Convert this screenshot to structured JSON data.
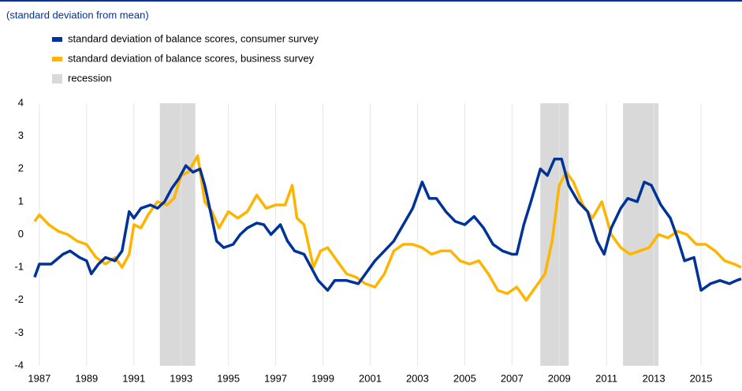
{
  "chart_data": {
    "type": "line",
    "subtitle": "(standard deviation from mean)",
    "xlim": [
      1986.77,
      2016.7
    ],
    "xticks": [
      1987,
      1989,
      1991,
      1993,
      1995,
      1997,
      1999,
      2001,
      2003,
      2005,
      2007,
      2009,
      2011,
      2013,
      2015
    ],
    "ylim": [
      -4,
      4
    ],
    "yticks": [
      -4,
      -3,
      -2,
      -1,
      0,
      1,
      2,
      3,
      4
    ],
    "grid": true,
    "recessions": {
      "name": "recession",
      "color": "#d9d9d9",
      "spans": [
        [
          1992.1,
          1993.6
        ],
        [
          2008.2,
          2009.4
        ],
        [
          2011.7,
          2013.2
        ]
      ]
    },
    "series": [
      {
        "name": "standard deviation of balance scores, consumer survey",
        "color": "#003399",
        "x": [
          1986.8,
          1987,
          1987.5,
          1988,
          1988.3,
          1988.7,
          1989,
          1989.2,
          1989.5,
          1989.8,
          1990.2,
          1990.5,
          1990.8,
          1991,
          1991.3,
          1991.7,
          1992,
          1992.3,
          1992.6,
          1992.9,
          1993.2,
          1993.5,
          1993.8,
          1994,
          1994.3,
          1994.5,
          1994.8,
          1995.2,
          1995.5,
          1995.8,
          1996.2,
          1996.5,
          1996.8,
          1997.2,
          1997.5,
          1997.8,
          1998.2,
          1998.5,
          1998.8,
          1999.2,
          1999.5,
          2000,
          2000.5,
          2000.8,
          2001.2,
          2001.6,
          2002,
          2002.4,
          2002.8,
          2003.2,
          2003.5,
          2003.8,
          2004.2,
          2004.6,
          2005,
          2005.4,
          2005.8,
          2006.2,
          2006.6,
          2007,
          2007.2,
          2007.5,
          2007.8,
          2008.2,
          2008.5,
          2008.8,
          2009.1,
          2009.4,
          2009.8,
          2010.2,
          2010.6,
          2010.9,
          2011.2,
          2011.6,
          2011.9,
          2012.3,
          2012.6,
          2012.9,
          2013.3,
          2013.7,
          2014,
          2014.3,
          2014.7,
          2015,
          2015.4,
          2015.8,
          2016.2,
          2016.5,
          2016.7
        ],
        "values": [
          -1.3,
          -0.9,
          -0.9,
          -0.6,
          -0.5,
          -0.7,
          -0.8,
          -1.2,
          -0.9,
          -0.7,
          -0.8,
          -0.5,
          0.7,
          0.5,
          0.8,
          0.9,
          0.8,
          1.0,
          1.4,
          1.7,
          2.1,
          1.9,
          2.0,
          1.5,
          0.5,
          -0.2,
          -0.4,
          -0.3,
          0.0,
          0.2,
          0.35,
          0.3,
          0.0,
          0.3,
          -0.2,
          -0.5,
          -0.6,
          -1.0,
          -1.4,
          -1.7,
          -1.4,
          -1.4,
          -1.5,
          -1.2,
          -0.8,
          -0.5,
          -0.2,
          0.3,
          0.8,
          1.6,
          1.1,
          1.1,
          0.7,
          0.4,
          0.3,
          0.55,
          0.2,
          -0.3,
          -0.5,
          -0.6,
          -0.6,
          0.3,
          1.0,
          2.0,
          1.8,
          2.3,
          2.3,
          1.5,
          1.0,
          0.7,
          -0.2,
          -0.6,
          0.2,
          0.8,
          1.1,
          1.0,
          1.6,
          1.5,
          0.9,
          0.5,
          -0.1,
          -0.8,
          -0.7,
          -1.7,
          -1.5,
          -1.4,
          -1.5,
          -1.4,
          -1.35
        ]
      },
      {
        "name": "standard deviation of balance scores, business survey",
        "color": "#ffb400",
        "x": [
          1986.8,
          1987,
          1987.4,
          1987.8,
          1988.2,
          1988.6,
          1989,
          1989.4,
          1989.8,
          1990.2,
          1990.5,
          1990.8,
          1991,
          1991.3,
          1991.6,
          1992,
          1992.4,
          1992.7,
          1993,
          1993.3,
          1993.7,
          1994,
          1994.3,
          1994.6,
          1995,
          1995.4,
          1995.8,
          1996.2,
          1996.6,
          1997,
          1997.4,
          1997.7,
          1997.9,
          1998.2,
          1998.6,
          1998.9,
          1999.2,
          1999.6,
          2000,
          2000.4,
          2000.8,
          2001.2,
          2001.6,
          2002,
          2002.4,
          2002.8,
          2003.2,
          2003.6,
          2004,
          2004.4,
          2004.8,
          2005.2,
          2005.6,
          2006,
          2006.4,
          2006.8,
          2007.2,
          2007.6,
          2008,
          2008.4,
          2008.7,
          2009,
          2009.3,
          2009.6,
          2010,
          2010.4,
          2010.8,
          2011.2,
          2011.6,
          2012,
          2012.4,
          2012.8,
          2013.2,
          2013.6,
          2014,
          2014.4,
          2014.8,
          2015.2,
          2015.6,
          2016,
          2016.4,
          2016.7
        ],
        "values": [
          0.4,
          0.6,
          0.3,
          0.1,
          0.0,
          -0.2,
          -0.3,
          -0.7,
          -0.9,
          -0.7,
          -1.0,
          -0.6,
          0.3,
          0.2,
          0.6,
          1.0,
          0.9,
          1.1,
          1.8,
          1.9,
          2.4,
          1.0,
          0.7,
          0.2,
          0.7,
          0.5,
          0.7,
          1.2,
          0.8,
          0.9,
          0.9,
          1.5,
          0.5,
          0.3,
          -1.0,
          -0.5,
          -0.4,
          -0.8,
          -1.2,
          -1.3,
          -1.5,
          -1.6,
          -1.2,
          -0.5,
          -0.3,
          -0.3,
          -0.4,
          -0.6,
          -0.5,
          -0.5,
          -0.8,
          -0.9,
          -0.8,
          -1.2,
          -1.7,
          -1.8,
          -1.6,
          -2.0,
          -1.6,
          -1.2,
          -0.2,
          1.5,
          1.9,
          1.6,
          0.9,
          0.5,
          1.0,
          0.0,
          -0.4,
          -0.6,
          -0.5,
          -0.4,
          0.0,
          -0.1,
          0.1,
          0.0,
          -0.3,
          -0.3,
          -0.5,
          -0.8,
          -0.9,
          -1.0
        ]
      }
    ]
  }
}
